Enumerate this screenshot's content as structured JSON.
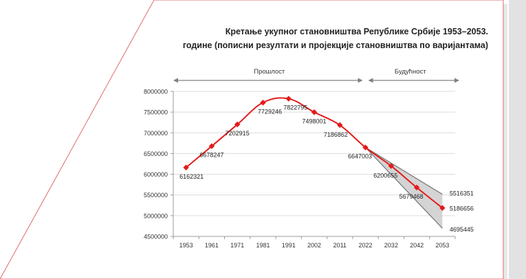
{
  "chart_data": {
    "type": "line",
    "title_line1": "Кретање укупног становништва Републике Србије 1953–2053.",
    "title_line2": "године (пописни резултати и пројекције становништва по варијантама)",
    "period_past": "Прошлост",
    "period_future": "Будућност",
    "categories": [
      "1953",
      "1961",
      "1971",
      "1981",
      "1991",
      "2002",
      "2011",
      "2022",
      "2032",
      "2042",
      "2053"
    ],
    "series": [
      {
        "values": [
          6162321,
          6678247,
          7202915,
          7729246,
          7822795,
          7498001,
          7186862,
          6647003,
          6200655,
          5679468,
          5186656
        ],
        "color": "#e31b1b"
      }
    ],
    "high_variant": {
      "values": [
        null,
        null,
        null,
        null,
        null,
        null,
        null,
        6647003,
        null,
        null,
        5516351
      ]
    },
    "low_variant": {
      "values": [
        null,
        null,
        null,
        null,
        null,
        null,
        null,
        6647003,
        null,
        null,
        4695445
      ]
    },
    "data_labels": [
      "6162321",
      "6678247",
      "7202915",
      "7729246",
      "7822795",
      "7498001",
      "7186862",
      "6647003",
      "6200655",
      "5679468",
      "5186656"
    ],
    "high_label": "5516351",
    "low_label": "4695445",
    "y_ticks": [
      "8000000",
      "7500000",
      "7000000",
      "6500000",
      "6000000",
      "5500000",
      "5000000",
      "4500000"
    ],
    "ylim": [
      4500000,
      8000000
    ],
    "grid": true,
    "colors": {
      "line": "#e31b1b",
      "band": "#d4d4d4",
      "band_edge": "#7a7a7a",
      "grid": "#dcdcdc",
      "arrow": "#808080"
    }
  }
}
